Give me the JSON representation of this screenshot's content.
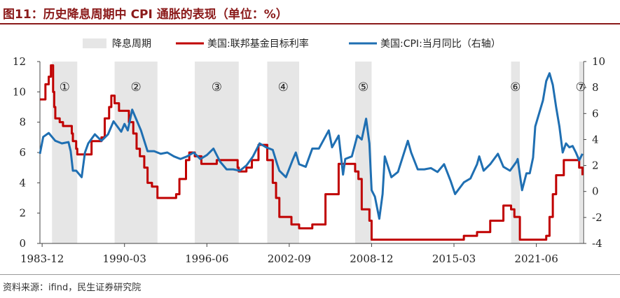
{
  "title": "图11：历史降息周期中 CPI 通胀的表现（单位：%）",
  "source": "资料来源：ifind，民生证券研究院",
  "colors": {
    "fed_rate": "#c00000",
    "cpi": "#1f6fb2",
    "shade": "#e6e6e6",
    "title": "#8b1a1a"
  },
  "chart_data": {
    "type": "line",
    "x_axis": {
      "type": "date",
      "range": [
        "1983-10",
        "2025-01"
      ],
      "ticks": [
        "1983-12",
        "1990-03",
        "1996-06",
        "2002-09",
        "2008-12",
        "2015-03",
        "2021-06"
      ]
    },
    "y_left": {
      "range": [
        0,
        12
      ],
      "ticks": [
        0,
        2,
        4,
        6,
        8,
        10,
        12
      ]
    },
    "y_right": {
      "range": [
        -4,
        10
      ],
      "ticks": [
        -4,
        -2,
        0,
        2,
        4,
        6,
        8,
        10
      ]
    },
    "legend": {
      "position": "top",
      "entries": [
        "降息周期",
        "美国:联邦基金目标利率",
        "美国:CPI:当月同比（右轴）"
      ]
    },
    "shaded_periods": [
      {
        "label": "①",
        "start": "1984-09",
        "end": "1986-08"
      },
      {
        "label": "②",
        "start": "1989-06",
        "end": "1992-09"
      },
      {
        "label": "③",
        "start": "1995-07",
        "end": "1998-11"
      },
      {
        "label": "④",
        "start": "2001-01",
        "end": "2003-06"
      },
      {
        "label": "⑤",
        "start": "2007-09",
        "end": "2008-12"
      },
      {
        "label": "⑥",
        "start": "2019-07",
        "end": "2020-03"
      },
      {
        "label": "⑦",
        "start": "2024-09",
        "end": "2024-12"
      }
    ],
    "series": [
      {
        "name": "美国:联邦基金目标利率",
        "axis": "left",
        "color": "#c00000",
        "points": [
          [
            "1983-10",
            9.5
          ],
          [
            "1984-02",
            9.5
          ],
          [
            "1984-03",
            10.5
          ],
          [
            "1984-06",
            11.0
          ],
          [
            "1984-08",
            11.75
          ],
          [
            "1984-10",
            10.0
          ],
          [
            "1984-11",
            9.0
          ],
          [
            "1984-12",
            8.25
          ],
          [
            "1985-04",
            8.0
          ],
          [
            "1985-07",
            7.75
          ],
          [
            "1985-10",
            7.75
          ],
          [
            "1986-03",
            7.25
          ],
          [
            "1986-04",
            6.75
          ],
          [
            "1986-07",
            6.25
          ],
          [
            "1986-08",
            5.875
          ],
          [
            "1987-08",
            5.875
          ],
          [
            "1987-09",
            6.75
          ],
          [
            "1988-06",
            7.0
          ],
          [
            "1988-09",
            8.25
          ],
          [
            "1989-01",
            9.0
          ],
          [
            "1989-03",
            9.75
          ],
          [
            "1989-06",
            9.25
          ],
          [
            "1989-10",
            8.75
          ],
          [
            "1990-07",
            8.0
          ],
          [
            "1990-11",
            7.25
          ],
          [
            "1991-02",
            6.25
          ],
          [
            "1991-05",
            5.75
          ],
          [
            "1991-09",
            5.0
          ],
          [
            "1991-12",
            4.0
          ],
          [
            "1992-04",
            3.75
          ],
          [
            "1992-09",
            3.0
          ],
          [
            "1994-01",
            3.0
          ],
          [
            "1994-02",
            3.25
          ],
          [
            "1994-05",
            4.25
          ],
          [
            "1994-11",
            5.5
          ],
          [
            "1995-02",
            6.0
          ],
          [
            "1995-07",
            5.75
          ],
          [
            "1996-01",
            5.25
          ],
          [
            "1997-03",
            5.5
          ],
          [
            "1998-10",
            5.0
          ],
          [
            "1998-11",
            4.75
          ],
          [
            "1999-06",
            5.0
          ],
          [
            "1999-11",
            5.5
          ],
          [
            "2000-05",
            6.5
          ],
          [
            "2001-01",
            5.5
          ],
          [
            "2001-06",
            4.0
          ],
          [
            "2001-09",
            3.0
          ],
          [
            "2001-12",
            1.75
          ],
          [
            "2002-11",
            1.25
          ],
          [
            "2003-06",
            1.0
          ],
          [
            "2004-05",
            1.0
          ],
          [
            "2004-06",
            1.25
          ],
          [
            "2005-06",
            3.25
          ],
          [
            "2006-06",
            5.25
          ],
          [
            "2007-08",
            5.25
          ],
          [
            "2007-09",
            4.75
          ],
          [
            "2007-12",
            4.25
          ],
          [
            "2008-03",
            2.25
          ],
          [
            "2008-10",
            1.5
          ],
          [
            "2008-12",
            0.25
          ],
          [
            "2015-11",
            0.25
          ],
          [
            "2015-12",
            0.5
          ],
          [
            "2016-12",
            0.75
          ],
          [
            "2017-12",
            1.5
          ],
          [
            "2018-12",
            2.5
          ],
          [
            "2019-06",
            2.5
          ],
          [
            "2019-07",
            2.25
          ],
          [
            "2019-10",
            1.75
          ],
          [
            "2020-03",
            0.25
          ],
          [
            "2022-02",
            0.25
          ],
          [
            "2022-03",
            0.5
          ],
          [
            "2022-06",
            1.75
          ],
          [
            "2022-09",
            3.25
          ],
          [
            "2022-12",
            4.5
          ],
          [
            "2023-07",
            5.5
          ],
          [
            "2024-08",
            5.5
          ],
          [
            "2024-09",
            5.0
          ],
          [
            "2024-12",
            4.5
          ]
        ]
      },
      {
        "name": "美国:CPI:当月同比（右轴）",
        "axis": "right",
        "color": "#1f6fb2",
        "points": [
          [
            "1983-10",
            2.9
          ],
          [
            "1984-01",
            4.2
          ],
          [
            "1984-06",
            4.5
          ],
          [
            "1984-12",
            3.9
          ],
          [
            "1985-06",
            3.7
          ],
          [
            "1985-12",
            3.8
          ],
          [
            "1986-02",
            3.1
          ],
          [
            "1986-04",
            1.6
          ],
          [
            "1986-07",
            1.6
          ],
          [
            "1986-10",
            1.3
          ],
          [
            "1986-12",
            1.1
          ],
          [
            "1987-03",
            3.0
          ],
          [
            "1987-06",
            3.7
          ],
          [
            "1987-12",
            4.4
          ],
          [
            "1988-06",
            3.9
          ],
          [
            "1988-12",
            4.4
          ],
          [
            "1989-05",
            5.4
          ],
          [
            "1989-12",
            4.6
          ],
          [
            "1990-03",
            5.2
          ],
          [
            "1990-06",
            4.7
          ],
          [
            "1990-10",
            6.3
          ],
          [
            "1991-01",
            5.7
          ],
          [
            "1991-06",
            4.7
          ],
          [
            "1991-12",
            3.1
          ],
          [
            "1992-06",
            3.1
          ],
          [
            "1992-12",
            2.9
          ],
          [
            "1993-06",
            3.0
          ],
          [
            "1993-12",
            2.7
          ],
          [
            "1994-06",
            2.5
          ],
          [
            "1994-12",
            2.7
          ],
          [
            "1995-06",
            3.0
          ],
          [
            "1995-12",
            2.5
          ],
          [
            "1996-06",
            2.8
          ],
          [
            "1996-12",
            3.3
          ],
          [
            "1997-06",
            2.3
          ],
          [
            "1997-12",
            1.7
          ],
          [
            "1998-06",
            1.7
          ],
          [
            "1998-12",
            1.6
          ],
          [
            "1999-06",
            2.0
          ],
          [
            "1999-12",
            2.7
          ],
          [
            "2000-06",
            3.7
          ],
          [
            "2000-12",
            3.4
          ],
          [
            "2001-06",
            3.2
          ],
          [
            "2001-10",
            2.1
          ],
          [
            "2001-12",
            1.6
          ],
          [
            "2002-06",
            1.1
          ],
          [
            "2002-12",
            2.4
          ],
          [
            "2003-03",
            3.0
          ],
          [
            "2003-06",
            2.1
          ],
          [
            "2003-12",
            1.9
          ],
          [
            "2004-06",
            3.3
          ],
          [
            "2004-12",
            3.3
          ],
          [
            "2005-09",
            4.7
          ],
          [
            "2005-12",
            3.4
          ],
          [
            "2006-06",
            4.3
          ],
          [
            "2006-10",
            1.3
          ],
          [
            "2006-12",
            2.5
          ],
          [
            "2007-06",
            2.7
          ],
          [
            "2007-11",
            4.3
          ],
          [
            "2008-03",
            4.0
          ],
          [
            "2008-07",
            5.6
          ],
          [
            "2008-10",
            3.7
          ],
          [
            "2008-12",
            0.1
          ],
          [
            "2009-03",
            -0.4
          ],
          [
            "2009-07",
            -2.1
          ],
          [
            "2009-10",
            -0.2
          ],
          [
            "2009-12",
            2.7
          ],
          [
            "2010-06",
            1.1
          ],
          [
            "2010-12",
            1.5
          ],
          [
            "2011-09",
            3.9
          ],
          [
            "2011-12",
            3.0
          ],
          [
            "2012-06",
            1.7
          ],
          [
            "2012-12",
            1.7
          ],
          [
            "2013-06",
            1.8
          ],
          [
            "2013-12",
            1.5
          ],
          [
            "2014-06",
            2.1
          ],
          [
            "2014-12",
            0.8
          ],
          [
            "2015-04",
            -0.2
          ],
          [
            "2015-12",
            0.7
          ],
          [
            "2016-06",
            1.0
          ],
          [
            "2016-12",
            2.1
          ],
          [
            "2017-02",
            2.7
          ],
          [
            "2017-06",
            1.6
          ],
          [
            "2017-12",
            2.1
          ],
          [
            "2018-07",
            2.9
          ],
          [
            "2018-12",
            1.9
          ],
          [
            "2019-06",
            1.6
          ],
          [
            "2019-12",
            2.3
          ],
          [
            "2020-01",
            2.5
          ],
          [
            "2020-05",
            0.1
          ],
          [
            "2020-09",
            1.4
          ],
          [
            "2020-12",
            1.4
          ],
          [
            "2021-03",
            2.6
          ],
          [
            "2021-05",
            5.0
          ],
          [
            "2021-12",
            7.0
          ],
          [
            "2022-03",
            8.5
          ],
          [
            "2022-06",
            9.1
          ],
          [
            "2022-09",
            8.2
          ],
          [
            "2022-12",
            6.5
          ],
          [
            "2023-03",
            5.0
          ],
          [
            "2023-06",
            3.0
          ],
          [
            "2023-09",
            3.7
          ],
          [
            "2023-12",
            3.4
          ],
          [
            "2024-03",
            3.5
          ],
          [
            "2024-06",
            3.0
          ],
          [
            "2024-09",
            2.4
          ],
          [
            "2024-12",
            2.9
          ]
        ]
      }
    ]
  }
}
